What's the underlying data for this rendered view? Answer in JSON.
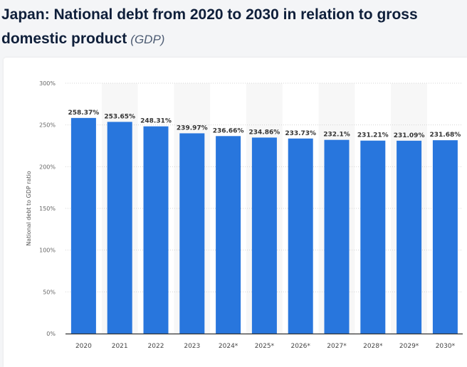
{
  "header": {
    "title": "Japan: National debt from 2020 to 2030 in relation to gross domestic product",
    "subtitle": "(GDP)"
  },
  "chart_data": {
    "type": "bar",
    "categories": [
      "2020",
      "2021",
      "2022",
      "2023",
      "2024*",
      "2025*",
      "2026*",
      "2027*",
      "2028*",
      "2029*",
      "2030*"
    ],
    "values": [
      258.37,
      253.65,
      248.31,
      239.97,
      236.66,
      234.86,
      233.73,
      232.1,
      231.21,
      231.09,
      231.68
    ],
    "data_labels": [
      "258.37%",
      "253.65%",
      "248.31%",
      "239.97%",
      "236.66%",
      "234.86%",
      "233.73%",
      "232.1%",
      "231.21%",
      "231.09%",
      "231.68%"
    ],
    "ylabel": "National debt to GDP ratio",
    "ylim": [
      0,
      300
    ],
    "yticks": [
      "0%",
      "50%",
      "100%",
      "150%",
      "200%",
      "250%",
      "300%"
    ],
    "grid": true,
    "bar_color": "#2876dd"
  }
}
